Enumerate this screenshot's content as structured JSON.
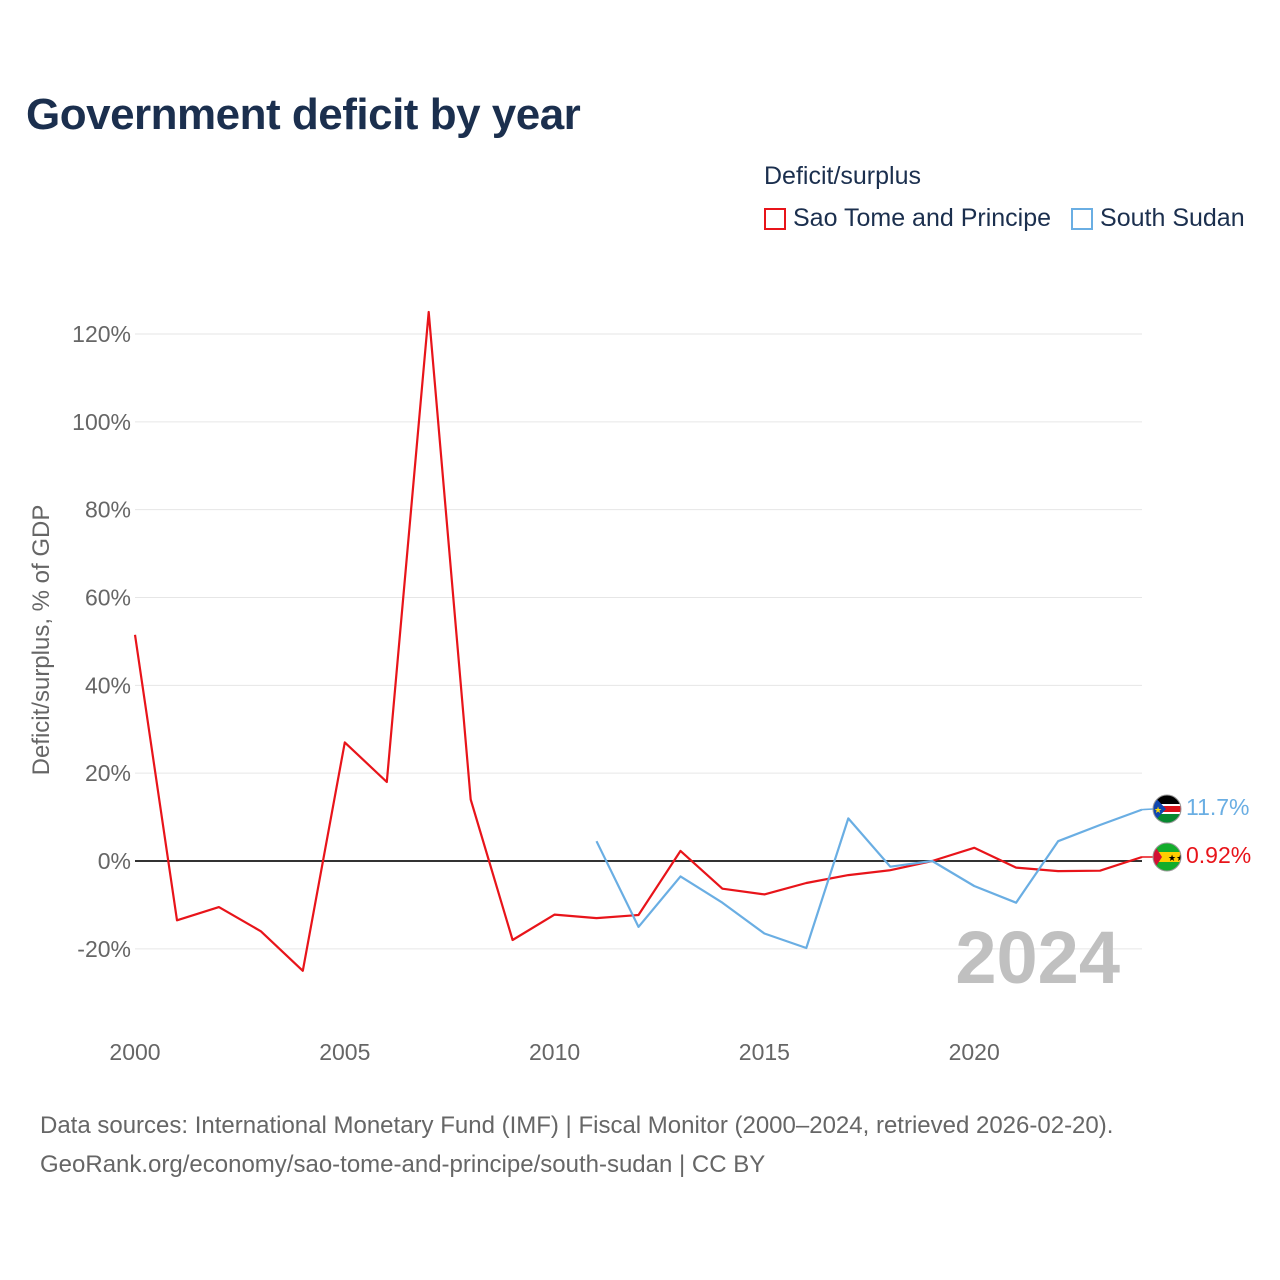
{
  "chart_data": {
    "type": "line",
    "title": "Government deficit by year",
    "xlabel": "",
    "ylabel": "Deficit/surplus, % of GDP",
    "xlim": [
      2000,
      2024
    ],
    "ylim": [
      -30,
      130
    ],
    "x_ticks": [
      2000,
      2005,
      2010,
      2015,
      2020
    ],
    "x_tick_labels": [
      "2000",
      "2005",
      "2010",
      "2015",
      "2020"
    ],
    "y_ticks": [
      -20,
      0,
      20,
      40,
      60,
      80,
      100,
      120
    ],
    "y_tick_labels": [
      "-20%",
      "0%",
      "20%",
      "40%",
      "60%",
      "80%",
      "100%",
      "120%"
    ],
    "legend_title": "Deficit/surplus",
    "legend_position": "top-right",
    "watermark_year": "2024",
    "series": [
      {
        "name": "Sao Tome and Principe",
        "color": "#e8141a",
        "flag": "sao-tome-and-principe-flag-icon",
        "end_label": "0.92%",
        "x": [
          2000,
          2001,
          2002,
          2003,
          2004,
          2005,
          2006,
          2007,
          2008,
          2009,
          2010,
          2011,
          2012,
          2013,
          2014,
          2015,
          2016,
          2017,
          2018,
          2019,
          2020,
          2021,
          2022,
          2023,
          2024
        ],
        "values": [
          51.5,
          -13.5,
          -10.5,
          -16,
          -25,
          27,
          18,
          125,
          14,
          -18,
          -12.2,
          -13,
          -12.3,
          2.3,
          -6.3,
          -7.6,
          -5,
          -3.2,
          -2.1,
          0,
          3,
          -1.5,
          -2.3,
          -2.2,
          0.92
        ]
      },
      {
        "name": "South Sudan",
        "color": "#6aaee3",
        "flag": "south-sudan-flag-icon",
        "end_label": "11.7%",
        "x": [
          2011,
          2012,
          2013,
          2014,
          2015,
          2016,
          2017,
          2018,
          2019,
          2020,
          2021,
          2022,
          2023,
          2024
        ],
        "values": [
          4.5,
          -15,
          -3.5,
          -9.5,
          -16.5,
          -19.8,
          9.7,
          -1.3,
          0,
          -5.7,
          -9.5,
          4.5,
          8.2,
          11.7
        ]
      }
    ]
  },
  "source": {
    "line1": "Data sources: International Monetary Fund (IMF) | Fiscal Monitor (2000–2024, retrieved 2026-02-20).",
    "line2": "GeoRank.org/economy/sao-tome-and-principe/south-sudan | CC BY"
  }
}
